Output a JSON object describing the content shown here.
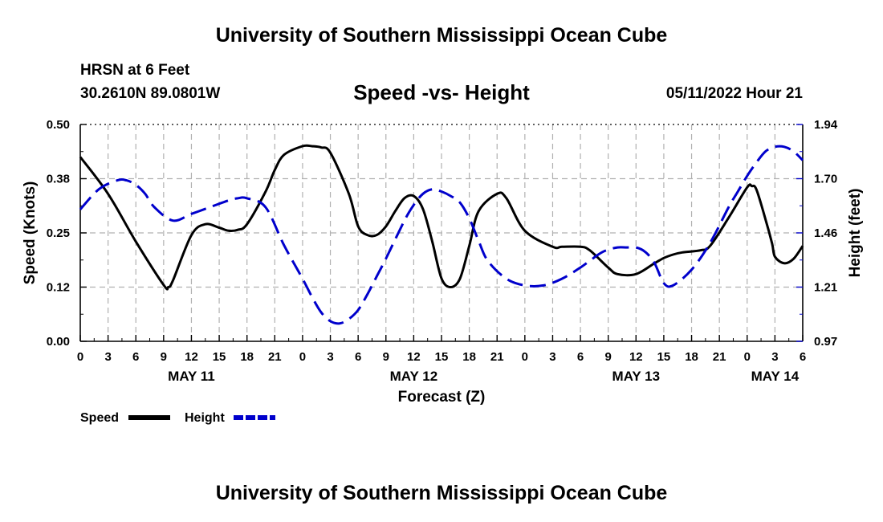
{
  "header": {
    "title": "University of Southern Mississippi Ocean Cube",
    "station": "HRSN at 6 Feet",
    "coordinates": "30.2610N  89.0801W",
    "subtitle": "Speed -vs- Height",
    "datetime": "05/11/2022 Hour 21"
  },
  "footer": {
    "title": "University of Southern Mississippi Ocean Cube"
  },
  "colors": {
    "speed": "#000000",
    "height": "#0000cc",
    "grid": "#b0b0b0"
  },
  "chart_data": {
    "type": "line",
    "title": "Speed -vs- Height",
    "xlabel": "Forecast (Z)",
    "ylabel_left": "Speed (Knots)",
    "ylabel_right": "Height (feet)",
    "x_ticks": [
      "0",
      "3",
      "6",
      "9",
      "12",
      "15",
      "18",
      "21",
      "0",
      "3",
      "6",
      "9",
      "12",
      "15",
      "18",
      "21",
      "0",
      "3",
      "6",
      "9",
      "12",
      "15",
      "18",
      "21",
      "0",
      "3",
      "6"
    ],
    "day_labels": [
      {
        "label": "MAY 11",
        "hour": 12
      },
      {
        "label": "MAY 12",
        "hour": 36
      },
      {
        "label": "MAY 13",
        "hour": 60
      },
      {
        "label": "MAY 14",
        "hour": 75
      }
    ],
    "xlim": [
      0,
      78
    ],
    "ylim_left": [
      0.0,
      0.5
    ],
    "ylim_right": [
      0.97,
      1.94
    ],
    "y_ticks_left": [
      "0.00",
      "0.12",
      "0.25",
      "0.38",
      "0.50"
    ],
    "y_ticks_right": [
      "0.97",
      "1.21",
      "1.46",
      "1.70",
      "1.94"
    ],
    "grid": true,
    "legend": [
      {
        "name": "Speed",
        "style": "solid"
      },
      {
        "name": "Height",
        "style": "dashed"
      }
    ],
    "series": [
      {
        "name": "Speed",
        "axis": "left",
        "x": [
          0,
          3,
          6,
          9,
          9.5,
          10,
          12,
          13.5,
          15,
          16,
          17,
          18,
          20,
          21,
          22,
          24,
          25,
          26,
          27,
          29,
          30,
          31,
          32,
          33,
          34,
          35,
          36,
          37,
          38,
          39,
          40,
          41,
          42,
          43,
          45,
          46,
          48,
          51,
          52,
          54,
          55,
          57,
          58,
          60,
          62,
          63,
          64,
          65,
          67,
          68,
          70,
          72,
          72.5,
          73,
          74,
          74.7,
          75,
          76,
          77,
          78
        ],
        "y": [
          0.425,
          0.34,
          0.23,
          0.13,
          0.125,
          0.14,
          0.245,
          0.27,
          0.262,
          0.255,
          0.257,
          0.27,
          0.345,
          0.395,
          0.43,
          0.45,
          0.45,
          0.447,
          0.435,
          0.34,
          0.265,
          0.245,
          0.245,
          0.265,
          0.3,
          0.33,
          0.335,
          0.305,
          0.23,
          0.145,
          0.125,
          0.145,
          0.22,
          0.3,
          0.34,
          0.33,
          0.255,
          0.218,
          0.218,
          0.218,
          0.21,
          0.17,
          0.155,
          0.155,
          0.18,
          0.192,
          0.2,
          0.205,
          0.21,
          0.22,
          0.285,
          0.355,
          0.358,
          0.35,
          0.28,
          0.225,
          0.195,
          0.18,
          0.19,
          0.22
        ]
      },
      {
        "name": "Height",
        "axis": "right",
        "x": [
          0,
          2,
          4,
          5,
          6,
          7,
          8,
          10,
          12,
          14,
          16,
          17,
          18,
          20,
          22,
          24,
          25,
          26,
          27,
          28,
          29,
          30,
          31,
          32,
          33,
          35,
          36,
          37,
          38,
          39,
          40,
          41,
          42,
          43,
          44,
          46,
          48,
          50,
          52,
          54,
          56,
          57,
          58,
          59,
          60,
          61,
          62,
          63,
          64,
          66,
          68,
          70,
          71,
          72,
          73,
          74,
          75,
          76,
          77,
          78
        ],
        "y": [
          1.56,
          1.65,
          1.69,
          1.69,
          1.67,
          1.63,
          1.57,
          1.51,
          1.54,
          1.57,
          1.6,
          1.61,
          1.61,
          1.57,
          1.4,
          1.25,
          1.17,
          1.1,
          1.06,
          1.05,
          1.07,
          1.11,
          1.18,
          1.26,
          1.34,
          1.51,
          1.58,
          1.63,
          1.65,
          1.64,
          1.62,
          1.59,
          1.52,
          1.42,
          1.33,
          1.25,
          1.22,
          1.22,
          1.25,
          1.3,
          1.36,
          1.38,
          1.39,
          1.39,
          1.39,
          1.37,
          1.32,
          1.23,
          1.22,
          1.29,
          1.41,
          1.57,
          1.64,
          1.71,
          1.77,
          1.82,
          1.84,
          1.84,
          1.82,
          1.78
        ]
      }
    ]
  }
}
